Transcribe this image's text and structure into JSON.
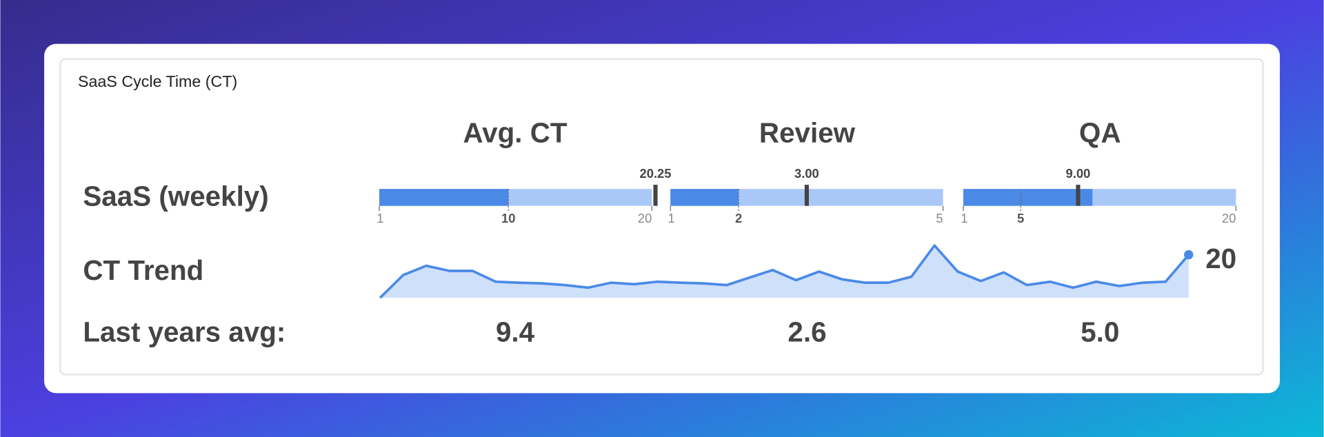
{
  "widget": {
    "title": "SaaS Cycle Time (CT)",
    "columns": [
      "Avg. CT",
      "Review",
      "QA"
    ],
    "rows": [
      "SaaS (weekly)",
      "CT Trend",
      "Last years avg:"
    ],
    "bullets": [
      {
        "min": 1,
        "max": 20,
        "ticks": [
          1,
          10,
          20
        ],
        "value": 10,
        "target": {
          "value": 20.25,
          "label": "20.25"
        }
      },
      {
        "min": 1,
        "max": 5,
        "ticks": [
          1,
          2,
          5
        ],
        "value": 2,
        "target": {
          "value": 3,
          "label": "3.00"
        }
      },
      {
        "min": 1,
        "max": 20,
        "ticks": [
          1,
          5,
          20
        ],
        "value": 10,
        "target": {
          "value": 9,
          "label": "9.00"
        }
      }
    ],
    "sparkline": {
      "ylim": [
        0,
        24.3
      ],
      "color": "#4a8ae6",
      "values": [
        0,
        10.6,
        14.9,
        12.5,
        12.5,
        7.5,
        7,
        6.7,
        5.9,
        4.7,
        7,
        6.3,
        7.5,
        7,
        6.7,
        5.9,
        9.4,
        12.9,
        8.2,
        12.2,
        8.6,
        7,
        7,
        9.8,
        24.3,
        12.2,
        7.8,
        11.8,
        5.9,
        7.5,
        4.7,
        7.5,
        5.5,
        7,
        7.5,
        20
      ]
    },
    "last_year_avg": [
      "9.4",
      "2.6",
      "5.0"
    ]
  }
}
